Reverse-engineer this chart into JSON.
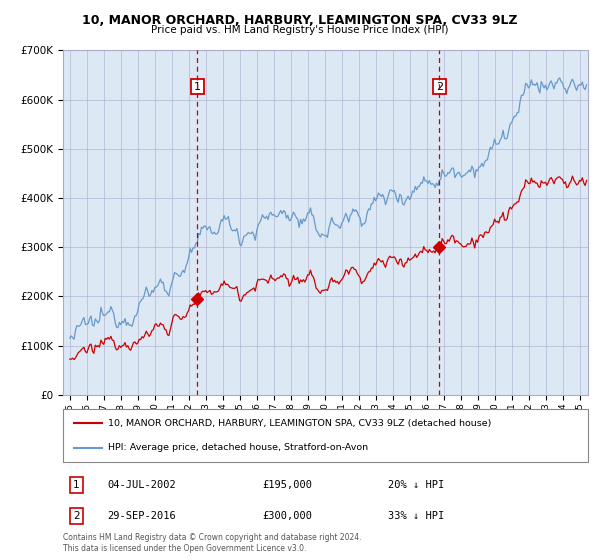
{
  "title1": "10, MANOR ORCHARD, HARBURY, LEAMINGTON SPA, CV33 9LZ",
  "title2": "Price paid vs. HM Land Registry's House Price Index (HPI)",
  "bg_color": "#dce9f5",
  "hpi_color": "#6699cc",
  "price_color": "#cc0000",
  "marker_color": "#cc0000",
  "vline_color": "#cc0000",
  "sale1_date": 2002.5,
  "sale1_price": 195000,
  "sale2_date": 2016.75,
  "sale2_price": 300000,
  "ylim_max": 700000,
  "ylim_min": 0,
  "xlim_min": 1994.6,
  "xlim_max": 2025.5,
  "legend_line1": "10, MANOR ORCHARD, HARBURY, LEAMINGTON SPA, CV33 9LZ (detached house)",
  "legend_line2": "HPI: Average price, detached house, Stratford-on-Avon",
  "annotation1_label": "1",
  "annotation1_date": "04-JUL-2002",
  "annotation1_price": "£195,000",
  "annotation1_hpi": "20% ↓ HPI",
  "annotation2_label": "2",
  "annotation2_date": "29-SEP-2016",
  "annotation2_price": "£300,000",
  "annotation2_hpi": "33% ↓ HPI",
  "footnote": "Contains HM Land Registry data © Crown copyright and database right 2024.\nThis data is licensed under the Open Government Licence v3.0."
}
